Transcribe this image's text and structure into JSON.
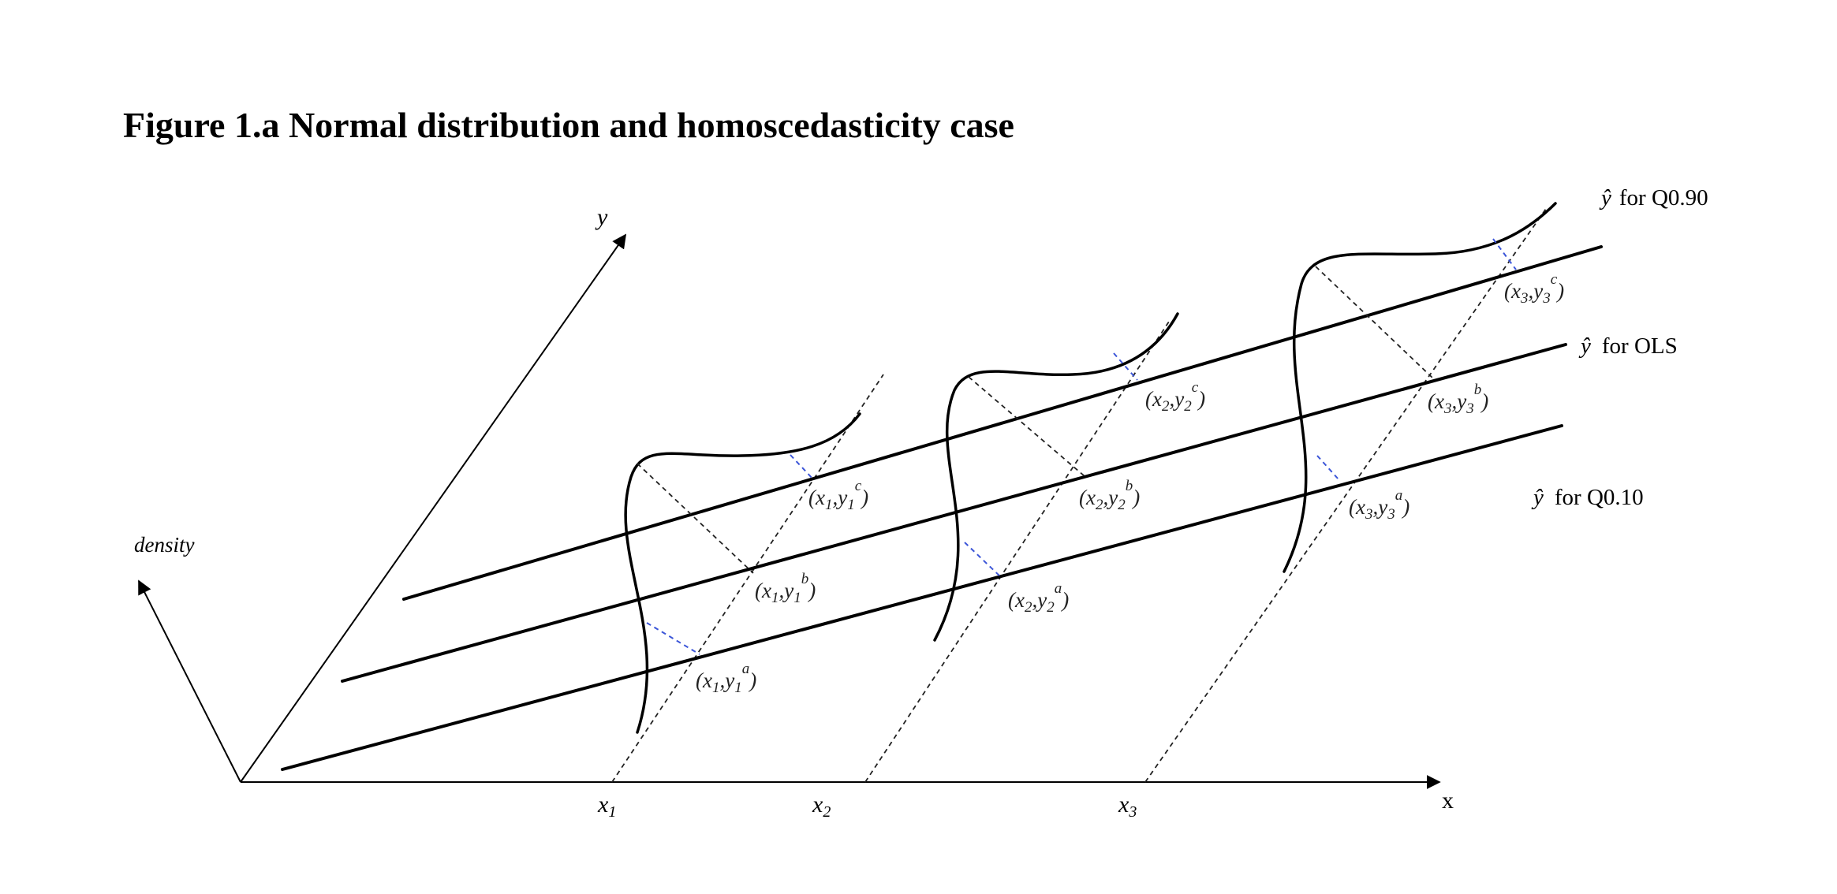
{
  "title": "Figure 1.a Normal distribution and homoscedasticity case",
  "axes": {
    "y_label": "y",
    "density_label": "density",
    "x_label": "x",
    "x_ticks": [
      {
        "main": "x",
        "sub": "1"
      },
      {
        "main": "x",
        "sub": "2"
      },
      {
        "main": "x",
        "sub": "3"
      }
    ]
  },
  "lines": [
    {
      "hat": "ŷ",
      "label": "for Q0.90"
    },
    {
      "hat": "ŷ",
      "label": "for OLS"
    },
    {
      "hat": "ŷ",
      "label": "for Q0.10"
    }
  ],
  "points": [
    {
      "i": "1",
      "q": "c"
    },
    {
      "i": "1",
      "q": "b"
    },
    {
      "i": "1",
      "q": "a"
    },
    {
      "i": "2",
      "q": "c"
    },
    {
      "i": "2",
      "q": "b"
    },
    {
      "i": "2",
      "q": "a"
    },
    {
      "i": "3",
      "q": "c"
    },
    {
      "i": "3",
      "q": "b"
    },
    {
      "i": "3",
      "q": "a"
    }
  ],
  "colors": {
    "ink": "#000000",
    "guide": "#3b55d8"
  }
}
